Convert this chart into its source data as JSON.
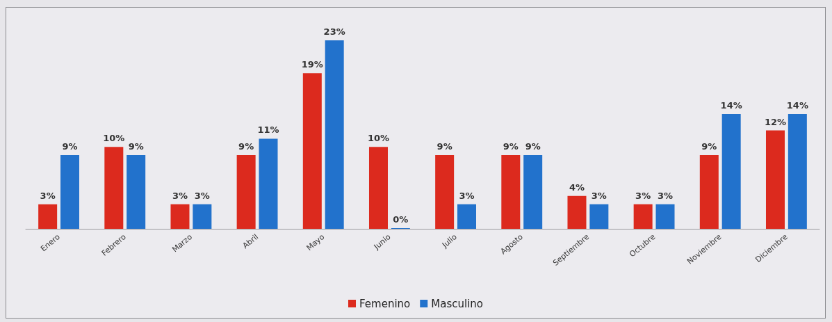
{
  "chart_data": {
    "type": "bar",
    "categories": [
      "Enero",
      "Febrero",
      "Marzo",
      "Abril",
      "Mayo",
      "Junio",
      "Julio",
      "Agosto",
      "Septiembre",
      "Octubre",
      "Noviembre",
      "Diciembre"
    ],
    "series": [
      {
        "name": "Femenino",
        "color": "#dc2a1e",
        "values": [
          3,
          10,
          3,
          9,
          19,
          10,
          9,
          9,
          4,
          3,
          9,
          12
        ],
        "value_labels": [
          "3%",
          "10%",
          "3%",
          "9%",
          "19%",
          "10%",
          "9%",
          "9%",
          "4%",
          "3%",
          "9%",
          "12%"
        ]
      },
      {
        "name": "Masculino",
        "color": "#2272cc",
        "values": [
          9,
          9,
          3,
          11,
          23,
          0,
          3,
          9,
          3,
          3,
          14,
          14
        ],
        "value_labels": [
          "9%",
          "9%",
          "3%",
          "11%",
          "23%",
          "0%",
          "3%",
          "9%",
          "3%",
          "3%",
          "14%",
          "14%"
        ]
      }
    ],
    "legend": "bottom",
    "grid": false
  }
}
